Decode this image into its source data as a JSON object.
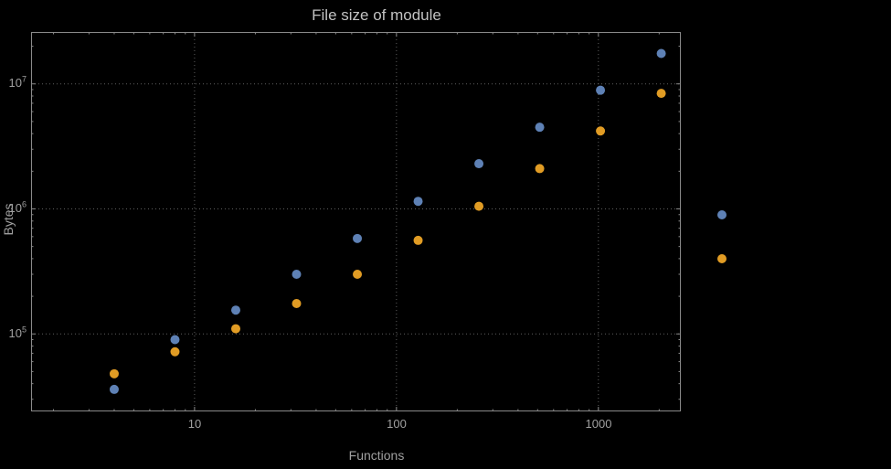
{
  "title": "File size of module",
  "axes": {
    "x_label": "Functions",
    "y_label": "Bytes",
    "x_tick_labels": [
      "10",
      "100",
      "1000"
    ],
    "y_tick_labels": [
      {
        "base": "10",
        "exp": "7"
      },
      {
        "base": "10",
        "exp": "6"
      },
      {
        "base": "10",
        "exp": "5"
      }
    ]
  },
  "colors": {
    "background": "#000000",
    "frame": "#8a8a8a",
    "grid": "#5e5e5e",
    "text": "#a0a0a0",
    "title_text": "#c2c2c2",
    "series1": "#5E81B5",
    "series2": "#E19C24"
  },
  "chart_data": {
    "type": "scatter",
    "title": "File size of module",
    "xlabel": "Functions",
    "ylabel": "Bytes",
    "x_scale": "log",
    "y_scale": "log",
    "xlim": [
      1.55,
      2560
    ],
    "ylim": [
      24000,
      26000000
    ],
    "grid": "dotted",
    "x_gridlines": [
      10,
      100,
      1000
    ],
    "y_gridlines": [
      100000,
      1000000,
      10000000
    ],
    "x": [
      4,
      8,
      16,
      32,
      64,
      128,
      256,
      512,
      1024,
      2048
    ],
    "series": [
      {
        "name": "series-blue",
        "color": "#5E81B5",
        "values": [
          36000,
          90000,
          155000,
          300000,
          580000,
          1150000,
          2300000,
          4500000,
          8900000,
          17500000
        ]
      },
      {
        "name": "series-orange",
        "color": "#E19C24",
        "values": [
          48000,
          72000,
          110000,
          175000,
          300000,
          560000,
          1050000,
          2100000,
          4200000,
          8400000
        ]
      }
    ],
    "legend": {
      "position": "right-center",
      "markers_only": true,
      "entries": [
        {
          "series": "series-blue"
        },
        {
          "series": "series-orange"
        }
      ]
    }
  }
}
